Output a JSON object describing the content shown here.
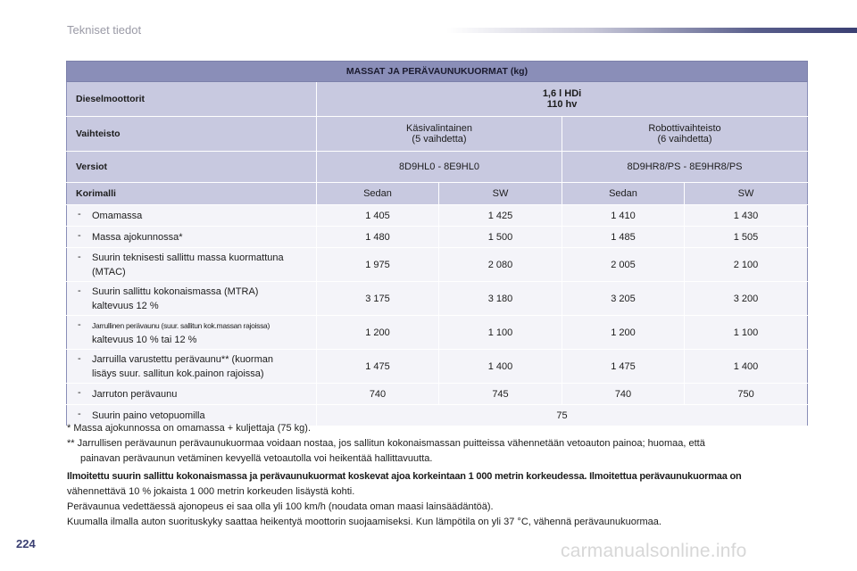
{
  "header": {
    "section_title": "Tekniset tiedot"
  },
  "table": {
    "title": "MASSAT JA PERÄVAUNUKUORMAT (kg)",
    "engine": {
      "label": "Dieselmoottorit",
      "line1": "1,6 l HDi",
      "line2": "110 hv"
    },
    "gearbox": {
      "label": "Vaihteisto",
      "manual_line1": "Käsivalintainen",
      "manual_line2": "(5 vaihdetta)",
      "auto_line1": "Robottivaihteisto",
      "auto_line2": "(6 vaihdetta)"
    },
    "versions": {
      "label": "Versiot",
      "manual": "8D9HL0 - 8E9HL0",
      "auto": "8D9HR8/PS - 8E9HR8/PS"
    },
    "body": {
      "label": "Korimalli",
      "cols": [
        "Sedan",
        "SW",
        "Sedan",
        "SW"
      ]
    },
    "rows": [
      {
        "dash": "-",
        "line1": "Omamassa",
        "line2": "",
        "values": [
          "1 405",
          "1 425",
          "1 410",
          "1 430"
        ]
      },
      {
        "dash": "-",
        "line1": "Massa ajokunnossa*",
        "line2": "",
        "values": [
          "1 480",
          "1 500",
          "1 485",
          "1 505"
        ]
      },
      {
        "dash": "-",
        "line1": "Suurin teknisesti sallittu massa kuormattuna",
        "line2": "(MTAC)",
        "values": [
          "1 975",
          "2 080",
          "2 005",
          "2 100"
        ]
      },
      {
        "dash": "-",
        "line1": "Suurin sallittu kokonaismassa (MTRA)",
        "line2": "kaltevuus 12 %",
        "values": [
          "3 175",
          "3 180",
          "3 205",
          "3 200"
        ]
      },
      {
        "dash": "-",
        "line1": "Jarrullinen perävaunu (suur. sallitun kok.massan rajoissa)",
        "line2": "kaltevuus 10 % tai 12 %",
        "values": [
          "1 200",
          "1 100",
          "1 200",
          "1 100"
        ]
      },
      {
        "dash": "-",
        "line1": "Jarruilla varustettu perävaunu** (kuorman",
        "line2": "lisäys suur. sallitun kok.painon rajoissa)",
        "values": [
          "1 475",
          "1 400",
          "1 475",
          "1 400"
        ]
      },
      {
        "dash": "-",
        "line1": "Jarruton perävaunu",
        "line2": "",
        "values": [
          "740",
          "745",
          "740",
          "750"
        ]
      }
    ],
    "last_row": {
      "dash": "-",
      "label": "Suurin paino vetopuomilla",
      "value": "75"
    }
  },
  "notes": {
    "note1": "* Massa ajokunnossa on omamassa + kuljettaja (75 kg).",
    "note2_line1": "** Jarrullisen perävaunun perävaunukuormaa voidaan nostaa, jos sallitun kokonaismassan puitteissa vähennetään vetoauton painoa; huomaa, että",
    "note2_line2": "painavan perävaunun vetäminen kevyellä vetoautolla voi heikentää hallittavuutta.",
    "bold_line": "Ilmoitettu suurin sallittu kokonaismassa ja perävaunukuormat koskevat ajoa korkeintaan 1 000 metrin korkeudessa. Ilmoitettua perävaunukuormaa on",
    "line4": "vähennettävä 10 % jokaista 1 000 metrin korkeuden lisäystä kohti.",
    "line5": "Perävaunua vedettäessä ajonopeus ei saa olla yli 100 km/h (noudata oman maasi lainsäädäntöä).",
    "line6": "Kuumalla ilmalla auton suorituskyky saattaa heikentyä moottorin suojaamiseksi. Kun lämpötila on yli 37 °C, vähennä perävaunukuormaa."
  },
  "footer": {
    "page_number": "224",
    "watermark": "carmanualsonline.info"
  },
  "colors": {
    "title_row": "#8a8eb8",
    "head_rows": "#c8c9e0",
    "data_rows": "#f4f4f9",
    "accent": "#3a3f72"
  }
}
